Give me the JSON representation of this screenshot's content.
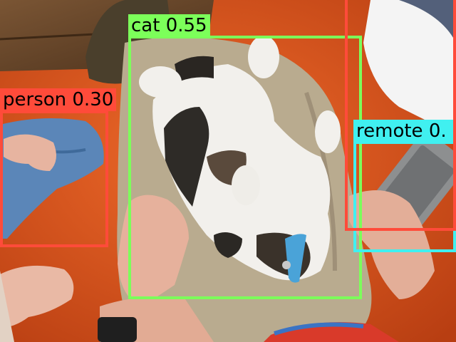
{
  "image": {
    "description_colors": {
      "couch": "#e0561e",
      "trousers": "#b9ab8f",
      "jeans": "#5b86b8",
      "skin": "#e7b4a0",
      "cat_white": "#f2f0ec",
      "cat_dark": "#2e2b27",
      "collar": "#4aa3d8",
      "remote": "#8d8f90",
      "sleeve": "#f4f4f4",
      "wood": "#6b4a2c"
    }
  },
  "detections": [
    {
      "class": "cat",
      "score": "0.55",
      "color": "#7cff5a"
    },
    {
      "class": "person",
      "score": "0.30",
      "color": "#ff4b3a"
    },
    {
      "class": "remote",
      "score": "0.",
      "color": "#40f0f0"
    },
    {
      "class": "",
      "score": "",
      "color": "#ff4b3a"
    }
  ]
}
